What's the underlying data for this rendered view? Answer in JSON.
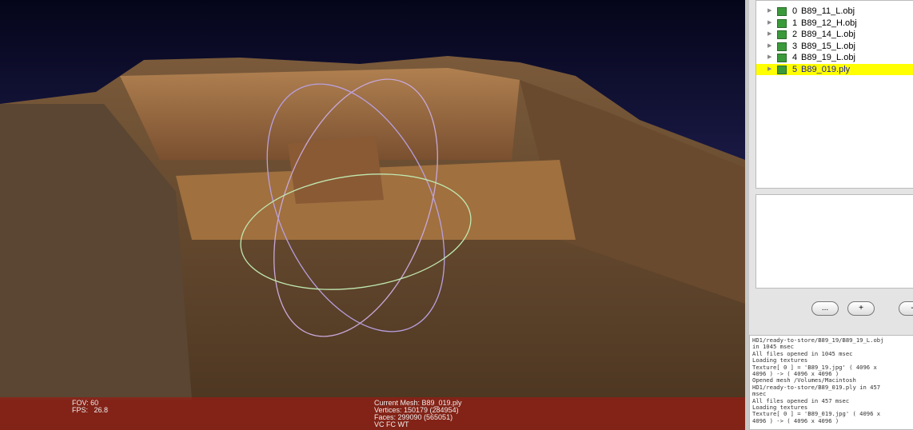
{
  "viewport": {
    "status_left": [
      "FOV: 60",
      "FPS:   26.8"
    ],
    "status_center": [
      "Current Mesh: B89_019.ply",
      "Vertices: 150179 (284954)",
      "Faces: 299090 (565051)",
      "VC FC WT"
    ]
  },
  "layers": {
    "selected_layer": 5,
    "items": [
      {
        "index": 0,
        "name": "B89_11_L.obj"
      },
      {
        "index": 1,
        "name": "B89_12_H.obj"
      },
      {
        "index": 2,
        "name": "B89_14_L.obj"
      },
      {
        "index": 3,
        "name": "B89_15_L.obj"
      },
      {
        "index": 4,
        "name": "B89_19_L.obj"
      },
      {
        "index": 5,
        "name": "B89_019.ply"
      }
    ]
  },
  "buttons": [
    "...",
    "+",
    "-"
  ],
  "log": [
    "HD1/ready-to-store/B89_19/B89_19_L.obj",
    "in 1045 msec",
    "All files opened in 1045 msec",
    "Loading textures",
    "Texture[ 0 ] = 'B89_19.jpg' ( 4096 x",
    "4096 ) -> ( 4096 x 4096 )",
    "Opened mesh /Volumes/Macintosh",
    "HD1/ready-to-store/B89_019.ply in 457",
    "msec",
    "All files opened in 457 msec",
    "Loading textures",
    "Texture[ 0 ] = 'B89_019.jpg' ( 4096 x",
    "4096 ) -> ( 4096 x 4096 )"
  ]
}
